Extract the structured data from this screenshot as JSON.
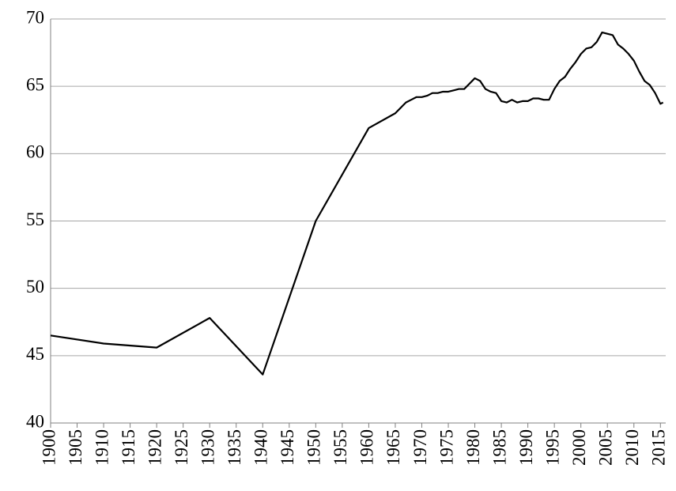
{
  "chart_data": {
    "type": "line",
    "x": [
      1900,
      1910,
      1920,
      1930,
      1940,
      1950,
      1960,
      1965,
      1966,
      1967,
      1968,
      1969,
      1970,
      1971,
      1972,
      1973,
      1974,
      1975,
      1976,
      1977,
      1978,
      1979,
      1980,
      1981,
      1982,
      1983,
      1984,
      1985,
      1986,
      1987,
      1988,
      1989,
      1990,
      1991,
      1992,
      1993,
      1994,
      1995,
      1996,
      1997,
      1998,
      1999,
      2000,
      2001,
      2002,
      2003,
      2004,
      2005,
      2006,
      2007,
      2008,
      2009,
      2010,
      2011,
      2012,
      2013,
      2014,
      2015,
      2015.5
    ],
    "series": [
      {
        "color": "#000000",
        "values": [
          46.5,
          45.9,
          45.6,
          47.8,
          43.6,
          55.0,
          61.9,
          63.0,
          63.4,
          63.8,
          64.0,
          64.2,
          64.2,
          64.3,
          64.5,
          64.5,
          64.6,
          64.6,
          64.7,
          64.8,
          64.8,
          65.2,
          65.6,
          65.4,
          64.8,
          64.6,
          64.5,
          63.9,
          63.8,
          64.0,
          63.8,
          63.9,
          63.9,
          64.1,
          64.1,
          64.0,
          64.0,
          64.8,
          65.4,
          65.7,
          66.3,
          66.8,
          67.4,
          67.8,
          67.9,
          68.3,
          69.0,
          68.9,
          68.8,
          68.1,
          67.8,
          67.4,
          66.9,
          66.1,
          65.4,
          65.1,
          64.5,
          63.7,
          63.8
        ]
      }
    ],
    "xlim": [
      1900,
      2016
    ],
    "xticks": [
      1900,
      1905,
      1910,
      1915,
      1920,
      1925,
      1930,
      1935,
      1940,
      1945,
      1950,
      1955,
      1960,
      1965,
      1970,
      1975,
      1980,
      1985,
      1990,
      1995,
      2000,
      2005,
      2010,
      2015
    ],
    "ylim": [
      40,
      70
    ],
    "yticks": [
      40,
      45,
      50,
      55,
      60,
      65,
      70
    ],
    "grid": true
  }
}
